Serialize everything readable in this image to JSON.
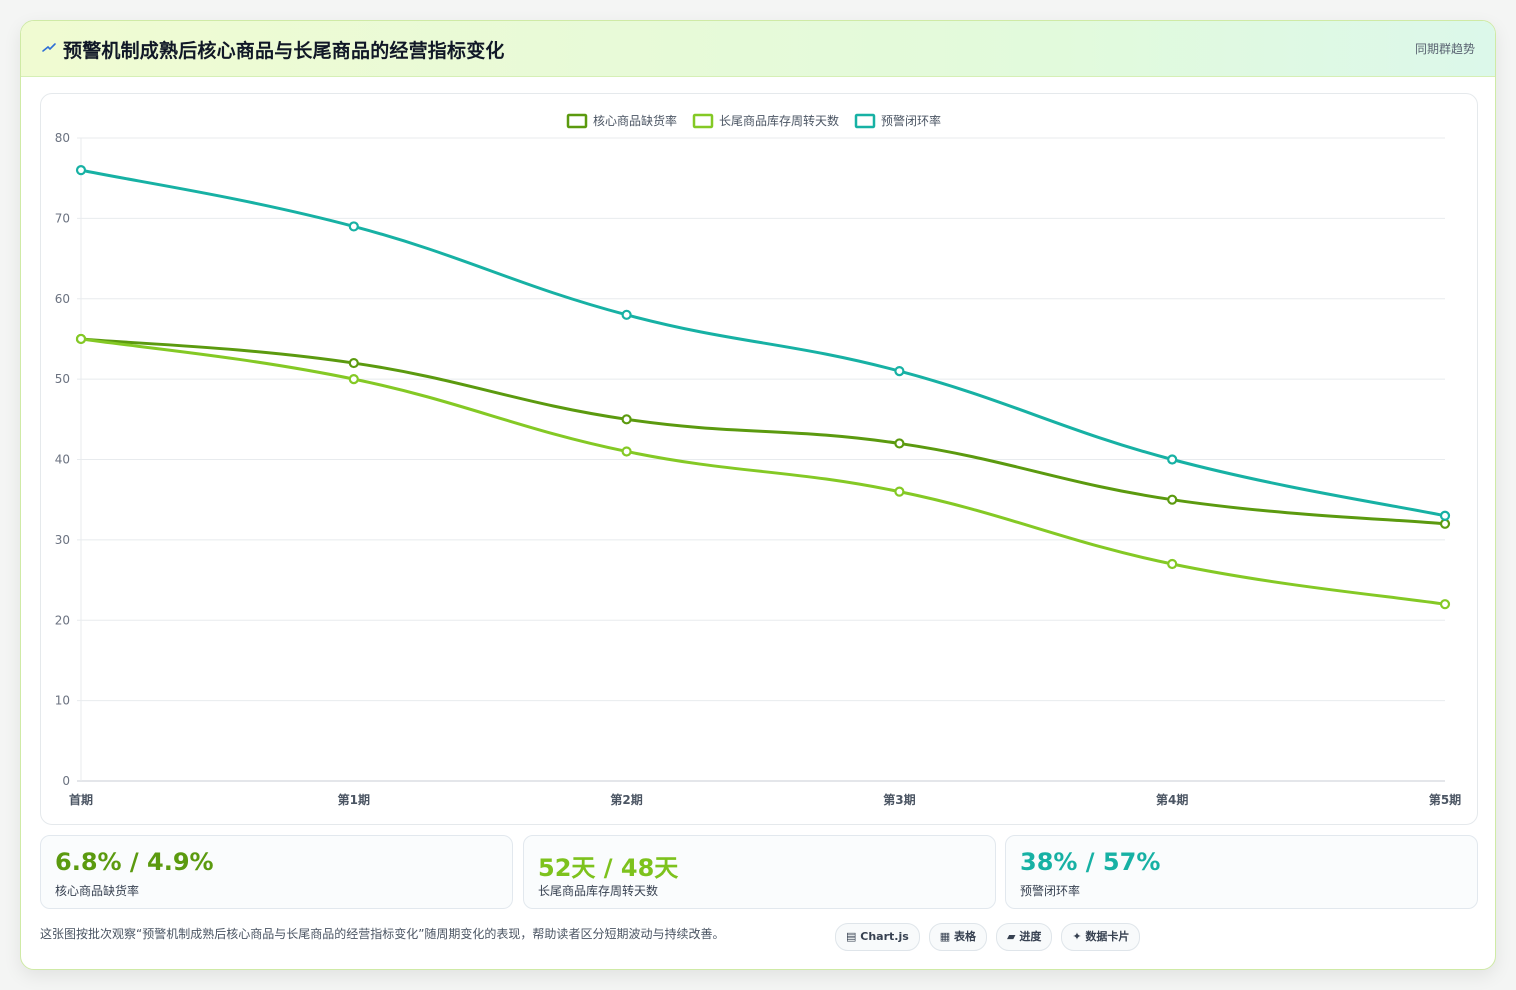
{
  "header": {
    "title": "预警机制成熟后核心商品与长尾商品的经营指标变化",
    "link": "同期群趋势"
  },
  "colors": {
    "core": "#5b9a0f",
    "longtail": "#84c925",
    "closure": "#17b1a4"
  },
  "chart_data": {
    "type": "line",
    "categories": [
      "首期",
      "第1期",
      "第2期",
      "第3期",
      "第4期",
      "第5期"
    ],
    "series": [
      {
        "name": "核心商品缺货率",
        "color": "#5b9a0f",
        "values": [
          55,
          52,
          45,
          42,
          35,
          32
        ]
      },
      {
        "name": "长尾商品库存周转天数",
        "color": "#84c925",
        "values": [
          55,
          50,
          41,
          36,
          27,
          22
        ]
      },
      {
        "name": "预警闭环率",
        "color": "#17b1a4",
        "values": [
          76,
          69,
          58,
          51,
          40,
          33
        ]
      }
    ],
    "ylim": [
      0,
      80
    ],
    "yticks": [
      0,
      10,
      20,
      30,
      40,
      50,
      60,
      70,
      80
    ],
    "grid": true,
    "legend": "top-center",
    "smooth": true
  },
  "kpis": [
    {
      "value": "6.8% / 4.9%",
      "label": "核心商品缺货率",
      "color": "#5b9a0f"
    },
    {
      "value": "52天 / 48天",
      "label": "长尾商品库存周转天数",
      "color": "#7dc21d"
    },
    {
      "value": "38% / 57%",
      "label": "预警闭环率",
      "color": "#17b1a4"
    }
  ],
  "caption": "这张图按批次观察“预警机制成熟后核心商品与长尾商品的经营指标变化”随周期变化的表现，帮助读者区分短期波动与持续改善。",
  "chips": [
    {
      "icon": "▤",
      "label": "Chart.js"
    },
    {
      "icon": "▦",
      "label": "表格"
    },
    {
      "icon": "▰",
      "label": "进度"
    },
    {
      "icon": "✦",
      "label": "数据卡片"
    }
  ]
}
